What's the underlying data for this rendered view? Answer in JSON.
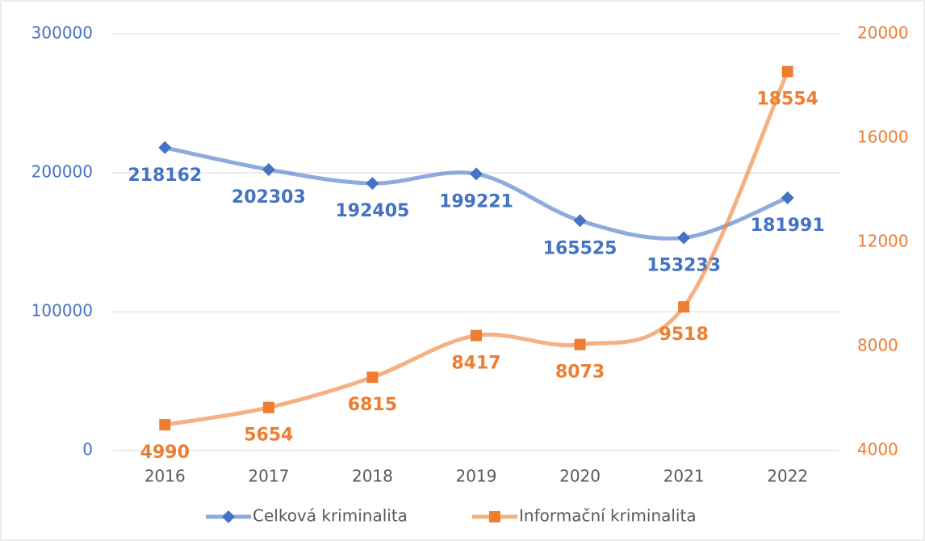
{
  "chart_data": {
    "type": "line",
    "smooth": true,
    "categories": [
      "2016",
      "2017",
      "2018",
      "2019",
      "2020",
      "2021",
      "2022"
    ],
    "series": [
      {
        "name": "Celková kriminalita",
        "color": "#4472c4",
        "marker": "diamond",
        "values": [
          218162,
          202303,
          192405,
          199221,
          165525,
          153233,
          181991
        ]
      },
      {
        "name": "Informační kriminalita",
        "color": "#ed7d31",
        "marker": "square",
        "axis": "y2",
        "values": [
          4990,
          5654,
          6815,
          8417,
          8073,
          9518,
          18554
        ]
      }
    ],
    "ylim": [
      0,
      300000
    ],
    "yticks": [
      0,
      100000,
      200000,
      300000
    ],
    "y2lim": [
      4000,
      20000
    ],
    "y2ticks": [
      4000,
      8000,
      12000,
      16000,
      20000
    ],
    "grid": true,
    "legend": "bottom"
  }
}
